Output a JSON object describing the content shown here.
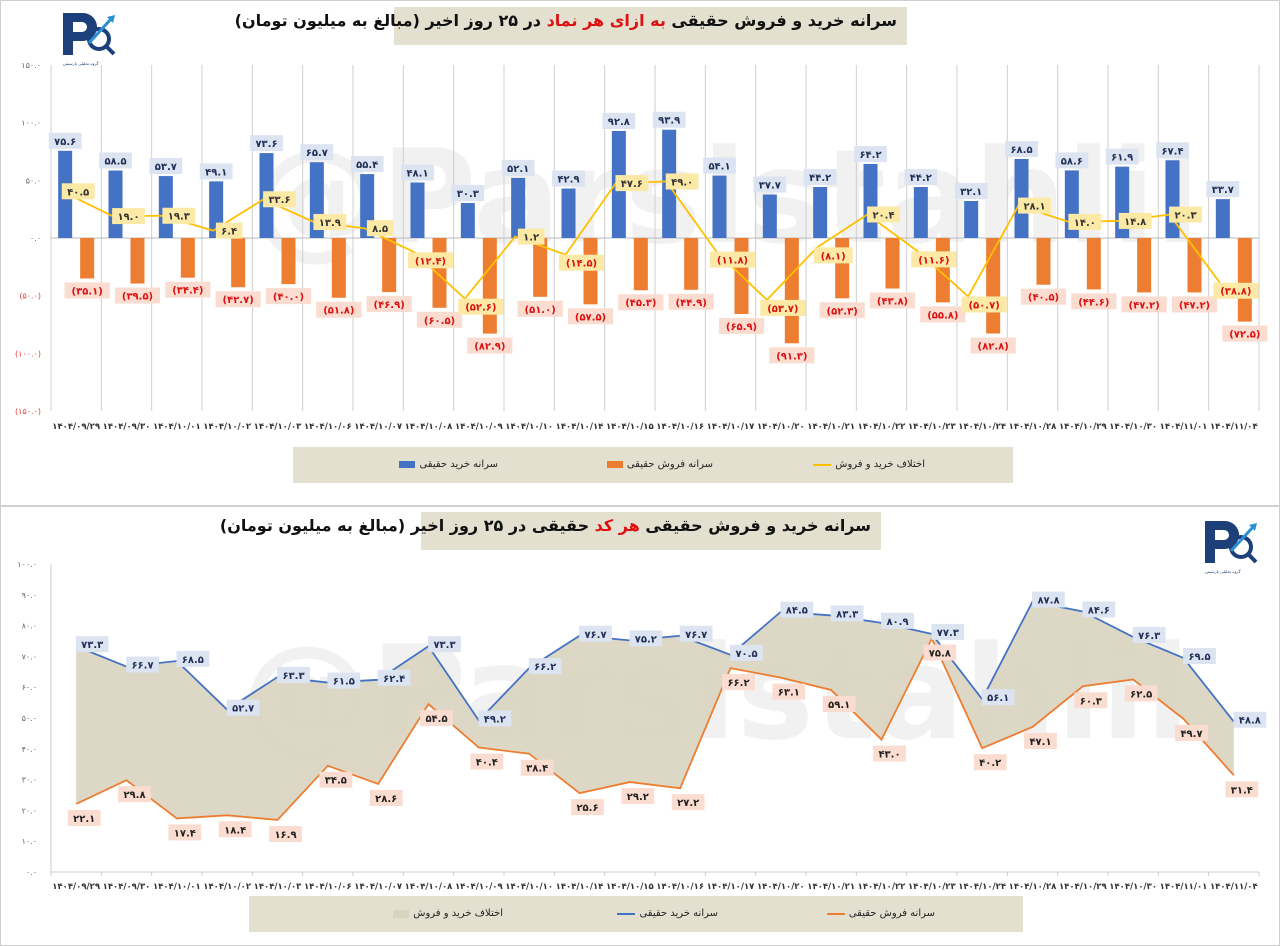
{
  "watermark": "@Parsistahlil",
  "logo": {
    "caption": "گروه تحلیلی پارسیس"
  },
  "colors": {
    "buy": "#4472c4",
    "sell": "#ed7d31",
    "diff": "#ffc000",
    "area": "#d9d4c0",
    "title_bg": "#e3e0cf",
    "highlight": "#dd1111",
    "negative_tick": "#e23b3b"
  },
  "chart_data": [
    {
      "type": "bar",
      "title_parts": [
        "سرانه خرید و فروش حقیقی ",
        "به ازای هر نماد",
        " در ۲۵ روز اخیر (مبالغ به میلیون تومان)"
      ],
      "xlabel": "",
      "ylabel": "",
      "ylim": [
        -150,
        150
      ],
      "yticks": [
        150,
        100,
        50,
        0,
        -50,
        -100,
        -150
      ],
      "ytick_labels": [
        "۱۵۰.۰",
        "۱۰۰.۰",
        "۵۰.۰",
        "۰.۰",
        "(۵۰.۰)",
        "(۱۰۰.۰)",
        "(۱۵۰.۰)"
      ],
      "grid": "vertical",
      "legend_position": "bottom",
      "categories": [
        "۱۴۰۴/۰۹/۲۹",
        "۱۴۰۴/۰۹/۳۰",
        "۱۴۰۴/۱۰/۰۱",
        "۱۴۰۴/۱۰/۰۲",
        "۱۴۰۴/۱۰/۰۳",
        "۱۴۰۴/۱۰/۰۶",
        "۱۴۰۴/۱۰/۰۷",
        "۱۴۰۴/۱۰/۰۸",
        "۱۴۰۴/۱۰/۰۹",
        "۱۴۰۴/۱۰/۱۰",
        "۱۴۰۴/۱۰/۱۴",
        "۱۴۰۴/۱۰/۱۵",
        "۱۴۰۴/۱۰/۱۶",
        "۱۴۰۴/۱۰/۱۷",
        "۱۴۰۴/۱۰/۲۰",
        "۱۴۰۴/۱۰/۲۱",
        "۱۴۰۴/۱۰/۲۲",
        "۱۴۰۴/۱۰/۲۳",
        "۱۴۰۴/۱۰/۲۴",
        "۱۴۰۴/۱۰/۲۸",
        "۱۴۰۴/۱۰/۲۹",
        "۱۴۰۴/۱۰/۳۰",
        "۱۴۰۴/۱۱/۰۱",
        "۱۴۰۴/۱۱/۰۴"
      ],
      "series": [
        {
          "name": "سرانه خرید حقیقی",
          "kind": "bar",
          "color": "#4472c4",
          "values": [
            75.6,
            58.5,
            53.7,
            49.1,
            73.6,
            65.7,
            55.4,
            48.1,
            30.3,
            52.1,
            42.9,
            92.8,
            93.9,
            54.1,
            37.7,
            44.2,
            64.2,
            44.2,
            32.1,
            68.5,
            58.6,
            61.9,
            67.4,
            33.7
          ]
        },
        {
          "name": "سرانه فروش حقیقی",
          "kind": "bar",
          "color": "#ed7d31",
          "values": [
            -35.1,
            -39.5,
            -34.4,
            -42.7,
            -40.0,
            -51.8,
            -46.9,
            -60.5,
            -82.9,
            -51.0,
            -57.5,
            -45.3,
            -44.9,
            -65.9,
            -91.3,
            -52.3,
            -43.8,
            -55.8,
            -82.8,
            -40.5,
            -44.6,
            -47.2,
            -47.2,
            -72.5
          ]
        },
        {
          "name": "اختلاف خرید و فروش",
          "kind": "line",
          "color": "#ffc000",
          "values": [
            40.5,
            19.0,
            19.3,
            6.4,
            33.6,
            13.9,
            8.5,
            -12.4,
            -52.6,
            1.2,
            -14.5,
            47.6,
            49.0,
            -11.8,
            -53.7,
            -8.1,
            20.4,
            -11.6,
            -50.7,
            28.1,
            14.0,
            14.8,
            20.3,
            -38.8
          ]
        }
      ]
    },
    {
      "type": "area",
      "title_parts": [
        "سرانه خرید و فروش حقیقی ",
        "هر کد",
        " حقیقی در ۲۵ روز اخیر (مبالغ به میلیون تومان)"
      ],
      "xlabel": "",
      "ylabel": "",
      "ylim": [
        0,
        100
      ],
      "yticks": [
        100,
        90,
        80,
        70,
        60,
        50,
        40,
        30,
        20,
        10,
        0
      ],
      "ytick_labels": [
        "۱۰۰.۰",
        "۹۰.۰",
        "۸۰.۰",
        "۷۰.۰",
        "۶۰.۰",
        "۵۰.۰",
        "۴۰.۰",
        "۳۰.۰",
        "۲۰.۰",
        "۱۰.۰",
        "۰.۰"
      ],
      "grid": "none",
      "legend_position": "bottom",
      "categories": [
        "۱۴۰۴/۰۹/۲۹",
        "۱۴۰۴/۰۹/۳۰",
        "۱۴۰۴/۱۰/۰۱",
        "۱۴۰۴/۱۰/۰۲",
        "۱۴۰۴/۱۰/۰۳",
        "۱۴۰۴/۱۰/۰۶",
        "۱۴۰۴/۱۰/۰۷",
        "۱۴۰۴/۱۰/۰۸",
        "۱۴۰۴/۱۰/۰۹",
        "۱۴۰۴/۱۰/۱۰",
        "۱۴۰۴/۱۰/۱۴",
        "۱۴۰۴/۱۰/۱۵",
        "۱۴۰۴/۱۰/۱۶",
        "۱۴۰۴/۱۰/۱۷",
        "۱۴۰۴/۱۰/۲۰",
        "۱۴۰۴/۱۰/۲۱",
        "۱۴۰۴/۱۰/۲۲",
        "۱۴۰۴/۱۰/۲۳",
        "۱۴۰۴/۱۰/۲۴",
        "۱۴۰۴/۱۰/۲۸",
        "۱۴۰۴/۱۰/۲۹",
        "۱۴۰۴/۱۰/۳۰",
        "۱۴۰۴/۱۱/۰۱",
        "۱۴۰۴/۱۱/۰۴"
      ],
      "series": [
        {
          "name": "اختلاف خرید و فروش",
          "kind": "area-band",
          "color": "#d9d4c0"
        },
        {
          "name": "سرانه خرید حقیقی",
          "kind": "line",
          "color": "#4472c4",
          "values": [
            73.3,
            66.7,
            68.5,
            52.7,
            63.3,
            61.5,
            62.4,
            73.3,
            49.2,
            66.2,
            76.7,
            75.2,
            76.7,
            70.5,
            84.5,
            83.3,
            80.9,
            77.3,
            56.1,
            87.8,
            84.6,
            76.3,
            69.5,
            48.8
          ]
        },
        {
          "name": "سرانه فروش حقیقی",
          "kind": "line",
          "color": "#ed7d31",
          "values": [
            22.1,
            29.8,
            17.4,
            18.4,
            16.9,
            34.5,
            28.6,
            54.5,
            40.4,
            38.4,
            25.6,
            29.2,
            27.2,
            66.2,
            63.1,
            59.1,
            43.0,
            75.8,
            40.2,
            47.1,
            60.3,
            62.5,
            49.7,
            31.4
          ]
        }
      ]
    }
  ]
}
